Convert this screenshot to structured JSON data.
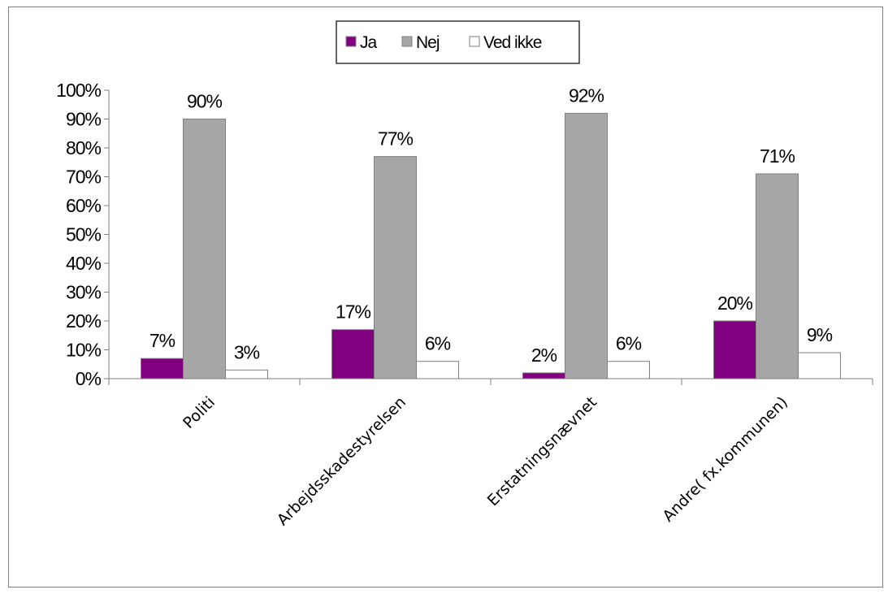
{
  "chart_data": {
    "type": "bar",
    "categories": [
      "Politi",
      "Arbejdsskadestyrelsen",
      "Erstatningsnævnet",
      "Andre( fx.kommunen)"
    ],
    "series": [
      {
        "name": "Ja",
        "values": [
          7,
          17,
          2,
          20
        ],
        "color": "#800080",
        "labels": [
          "7%",
          "17%",
          "2%",
          "20%"
        ]
      },
      {
        "name": "Nej",
        "values": [
          90,
          77,
          92,
          71
        ],
        "color": "#a6a6a6",
        "labels": [
          "90%",
          "77%",
          "92%",
          "71%"
        ]
      },
      {
        "name": "Ved ikke",
        "values": [
          3,
          6,
          6,
          9
        ],
        "color": "#ffffff",
        "labels": [
          "3%",
          "6%",
          "6%",
          "9%"
        ]
      }
    ],
    "ylim": [
      0,
      100
    ],
    "yticks": [
      "0%",
      "10%",
      "20%",
      "30%",
      "40%",
      "50%",
      "60%",
      "70%",
      "80%",
      "90%",
      "100%"
    ],
    "legend_position": "top-center",
    "grid": false
  }
}
